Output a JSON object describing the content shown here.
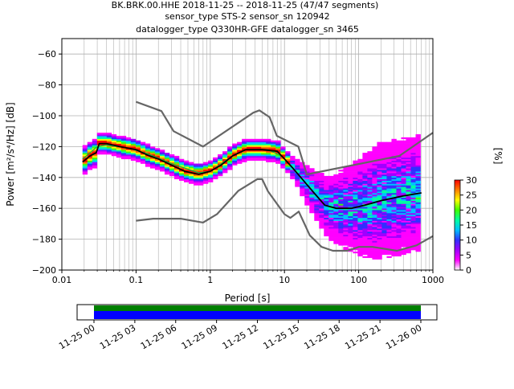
{
  "figure": {
    "title_lines": [
      "BK.BRK.00.HHE   2018-11-25 -- 2018-11-25  (47/47 segments)",
      "sensor_type STS-2 sensor_sn 120942",
      "datalogger_type Q330HR-GFE datalogger_sn 3465"
    ]
  },
  "chart_data": {
    "type": "heatmap",
    "subtype": "probabilistic power spectral density",
    "xlabel": "Period [s]",
    "ylabel": "Power [m²/s⁴/Hz] [dB]",
    "x_scale": "log",
    "xlim": [
      0.01,
      1000
    ],
    "ylim": [
      -200,
      -50
    ],
    "x_ticks": [
      0.01,
      0.1,
      1,
      10,
      100,
      1000
    ],
    "x_tick_labels": [
      "0.01",
      "0.1",
      "1",
      "10",
      "100",
      "1000"
    ],
    "y_ticks": [
      -200,
      -180,
      -160,
      -140,
      -120,
      -100,
      -80,
      -60
    ],
    "y_tick_labels": [
      "−200",
      "−180",
      "−160",
      "−140",
      "−120",
      "−100",
      "−80",
      "−60"
    ],
    "grid": true,
    "colorbar": {
      "label": "[%]",
      "range": [
        0,
        30
      ],
      "ticks": [
        0,
        5,
        10,
        15,
        20,
        25,
        30
      ],
      "colors": [
        "#ffffff",
        "#ff00ff",
        "#a000ff",
        "#3030ff",
        "#00c0ff",
        "#00ffa0",
        "#40ff00",
        "#ffff00",
        "#ff8000",
        "#ff0000"
      ]
    },
    "series": [
      {
        "role": "mean",
        "color": "#000000",
        "points": [
          [
            0.019,
            -130
          ],
          [
            0.024,
            -126
          ],
          [
            0.029,
            -124
          ],
          [
            0.032,
            -118
          ],
          [
            0.04,
            -118
          ],
          [
            0.06,
            -120
          ],
          [
            0.1,
            -122
          ],
          [
            0.15,
            -126
          ],
          [
            0.2,
            -128
          ],
          [
            0.3,
            -132
          ],
          [
            0.45,
            -136
          ],
          [
            0.7,
            -138
          ],
          [
            1,
            -136
          ],
          [
            1.4,
            -132
          ],
          [
            2,
            -126
          ],
          [
            3,
            -122
          ],
          [
            5,
            -122
          ],
          [
            8,
            -123
          ],
          [
            10,
            -128
          ],
          [
            13,
            -134
          ],
          [
            18,
            -142
          ],
          [
            25,
            -150
          ],
          [
            35,
            -158
          ],
          [
            50,
            -160
          ],
          [
            80,
            -160
          ],
          [
            120,
            -158
          ],
          [
            200,
            -155
          ],
          [
            400,
            -152
          ],
          [
            700,
            -150
          ]
        ]
      },
      {
        "role": "mode",
        "color": "#00c040",
        "points": [
          [
            0.019,
            -128
          ],
          [
            0.03,
            -120
          ],
          [
            0.04,
            -119
          ],
          [
            0.08,
            -121
          ],
          [
            0.15,
            -125
          ],
          [
            0.3,
            -131
          ],
          [
            0.7,
            -137
          ],
          [
            1,
            -136
          ],
          [
            2,
            -126
          ],
          [
            3,
            -122
          ],
          [
            6,
            -122
          ],
          [
            9,
            -126
          ]
        ]
      },
      {
        "role": "new_high_noise_model",
        "color": "#666666",
        "points": [
          [
            0.1,
            -91
          ],
          [
            0.22,
            -97
          ],
          [
            0.32,
            -110
          ],
          [
            0.8,
            -120
          ],
          [
            3.8,
            -98
          ],
          [
            4.6,
            -96.5
          ],
          [
            6.3,
            -101
          ],
          [
            7.9,
            -113
          ],
          [
            15.4,
            -120
          ],
          [
            20,
            -138
          ],
          [
            354.8,
            -126
          ],
          [
            1000,
            -111
          ]
        ]
      },
      {
        "role": "new_low_noise_model",
        "color": "#666666",
        "points": [
          [
            0.1,
            -168
          ],
          [
            0.17,
            -166.7
          ],
          [
            0.4,
            -166.7
          ],
          [
            0.8,
            -169.2
          ],
          [
            1.24,
            -163.7
          ],
          [
            2.4,
            -148.6
          ],
          [
            4.3,
            -141.1
          ],
          [
            5,
            -141.1
          ],
          [
            6,
            -149
          ],
          [
            10,
            -163.8
          ],
          [
            12,
            -166.2
          ],
          [
            15.6,
            -162.1
          ],
          [
            21.9,
            -177.5
          ],
          [
            31.6,
            -185
          ],
          [
            45,
            -187.5
          ],
          [
            70,
            -187.5
          ],
          [
            101,
            -185
          ],
          [
            154,
            -185
          ],
          [
            328,
            -187.5
          ],
          [
            600,
            -184
          ],
          [
            1000,
            -178
          ]
        ]
      }
    ],
    "time_axis": {
      "tick_labels": [
        "11-25 00",
        "11-25 03",
        "11-25 06",
        "11-25 09",
        "11-25 12",
        "11-25 15",
        "11-25 18",
        "11-25 21",
        "11-26 00"
      ],
      "coverage_start": "11-25 00",
      "coverage_end": "11-26 00",
      "bar_colors": [
        "#008000",
        "#0000ff"
      ]
    }
  }
}
